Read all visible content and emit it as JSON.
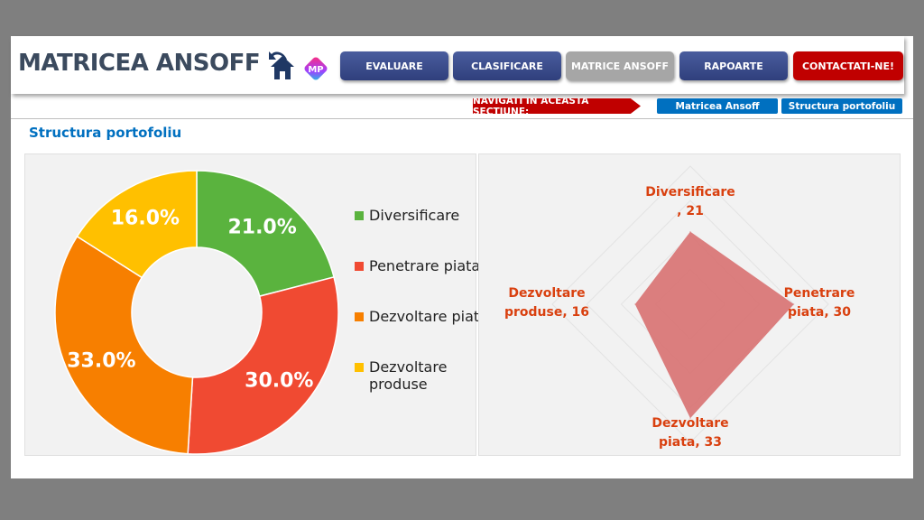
{
  "header": {
    "title": "MATRICEA ANSOFF",
    "home_icon": "home-back-icon",
    "logo": "MP",
    "buttons": [
      {
        "label": "EVALUARE"
      },
      {
        "label": "CLASIFICARE"
      },
      {
        "label": "MATRICE ANSOFF",
        "active": true
      },
      {
        "label": "RAPOARTE"
      },
      {
        "label": "CONTACTATI-NE!"
      }
    ]
  },
  "nav": {
    "label": "NAVIGATI IN ACEASTA SECTIUNE:",
    "links": [
      "Matricea Ansoff",
      "Structura portofoliu"
    ]
  },
  "section_title": "Structura portofoliu",
  "chart_data": [
    {
      "type": "pie",
      "variant": "donut",
      "categories": [
        "Diversificare",
        "Penetrare piata",
        "Dezvoltare piata",
        "Dezvoltare produse"
      ],
      "values": [
        21,
        30,
        33,
        16
      ],
      "labels": [
        "21.0%",
        "30.0%",
        "33.0%",
        "16.0%"
      ],
      "colors": [
        "#5ab33e",
        "#f04a32",
        "#f77f00",
        "#ffc000"
      ],
      "legend": "right"
    },
    {
      "type": "radar",
      "categories": [
        "Diversificare",
        "Penetrare piata",
        "Dezvoltare piata",
        "Dezvoltare produse"
      ],
      "values": [
        21,
        30,
        33,
        16
      ],
      "range": [
        0,
        40
      ],
      "labels": [
        [
          "Diversificare",
          ", 21"
        ],
        [
          "Penetrare",
          "piata, 30"
        ],
        [
          "Dezvoltare",
          "piata, 33"
        ],
        [
          "Dezvoltare",
          "produse, 16"
        ]
      ],
      "fill": "#d97777",
      "label_color": "#d9400f"
    }
  ]
}
